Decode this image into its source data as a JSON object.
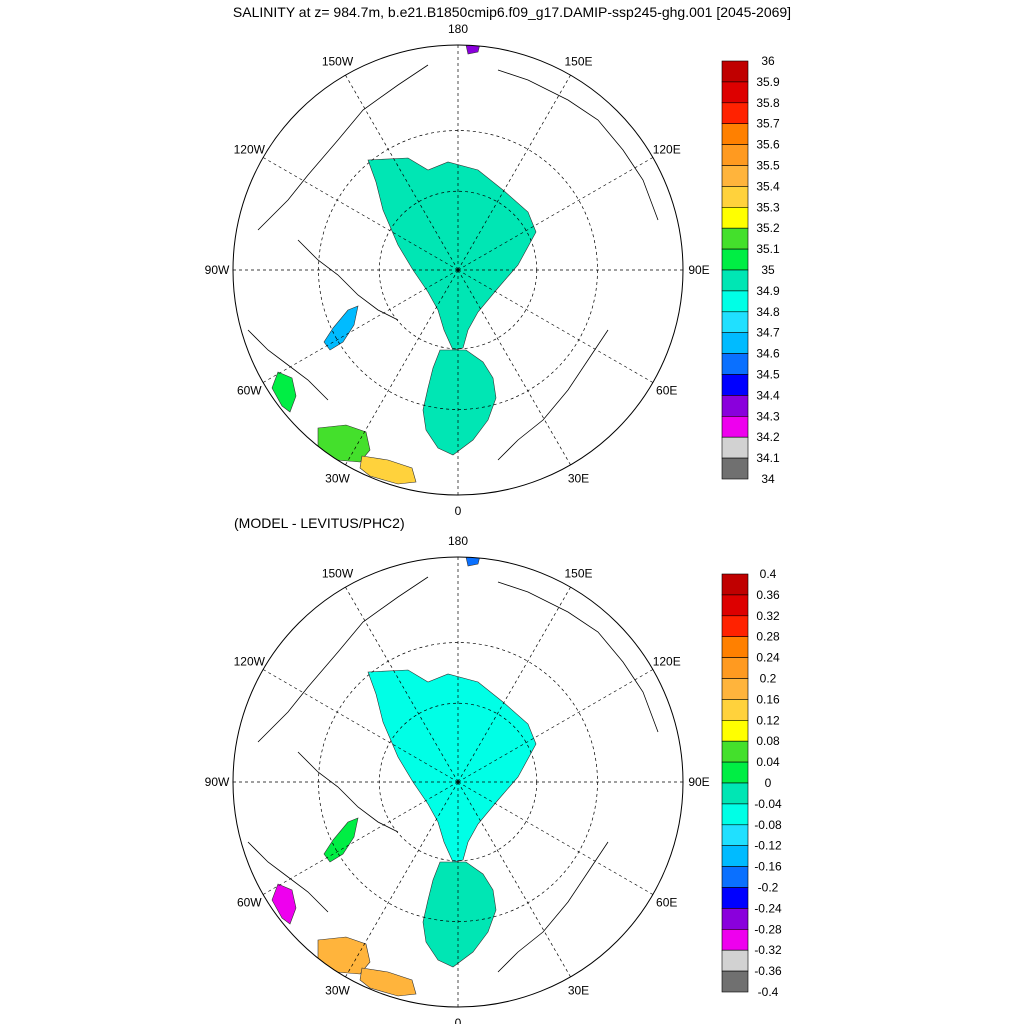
{
  "title": "SALINITY at z= 984.7m, b.e21.B1850cmip6.f09_g17.DAMIP-ssp245-ghg.001 [2045-2069]",
  "subtitle": "(MODEL - LEVITUS/PHC2)",
  "chart_data": [
    {
      "type": "heatmap",
      "projection": "north polar stereographic",
      "field": "salinity",
      "lon_labels": [
        "180",
        "150E",
        "120E",
        "90E",
        "60E",
        "30E",
        "0",
        "30W",
        "60W",
        "90W",
        "120W",
        "150W"
      ],
      "colorbar": {
        "labels": [
          "36",
          "35.9",
          "35.8",
          "35.7",
          "35.6",
          "35.5",
          "35.4",
          "35.3",
          "35.2",
          "35.1",
          "35",
          "34.9",
          "34.8",
          "34.7",
          "34.6",
          "34.5",
          "34.4",
          "34.3",
          "34.2",
          "34.1",
          "34"
        ],
        "colors": [
          "#c00000",
          "#dd0000",
          "#ff2200",
          "#ff8000",
          "#ff9a20",
          "#ffb43c",
          "#ffd23c",
          "#ffff00",
          "#44e02c",
          "#00ee44",
          "#00e6b4",
          "#00ffe6",
          "#20e0ff",
          "#00bbff",
          "#0a70ff",
          "#0000ff",
          "#8a00dc",
          "#ee00ee",
          "#d2d2d2",
          "#707070"
        ]
      },
      "regions": [
        {
          "area": "central Arctic basin",
          "value": "34.9"
        },
        {
          "area": "Nordic Seas",
          "value": "34.9"
        },
        {
          "area": "Baffin Bay",
          "value": "34.6"
        },
        {
          "area": "Labrador Sea",
          "value": "35.0"
        },
        {
          "area": "North Atlantic south of Iceland",
          "value": "35.1"
        },
        {
          "area": "North Atlantic near 20W",
          "value": "35.3"
        },
        {
          "area": "Bering Strait",
          "value": "34.3"
        }
      ]
    },
    {
      "type": "heatmap",
      "projection": "north polar stereographic",
      "field": "model minus Levitus/PHC2 salinity difference",
      "lon_labels": [
        "180",
        "150E",
        "120E",
        "90E",
        "60E",
        "30E",
        "0",
        "30W",
        "60W",
        "90W",
        "120W",
        "150W"
      ],
      "colorbar": {
        "labels": [
          "0.4",
          "0.36",
          "0.32",
          "0.28",
          "0.24",
          "0.2",
          "0.16",
          "0.12",
          "0.08",
          "0.04",
          "0",
          "-0.04",
          "-0.08",
          "-0.12",
          "-0.16",
          "-0.2",
          "-0.24",
          "-0.28",
          "-0.32",
          "-0.36",
          "-0.4"
        ],
        "colors": [
          "#c00000",
          "#dd0000",
          "#ff2200",
          "#ff8000",
          "#ff9a20",
          "#ffb43c",
          "#ffd23c",
          "#ffff00",
          "#44e02c",
          "#00ee44",
          "#00e6b4",
          "#00ffe6",
          "#20e0ff",
          "#00bbff",
          "#0a70ff",
          "#0000ff",
          "#8a00dc",
          "#ee00ee",
          "#d2d2d2",
          "#707070"
        ]
      },
      "regions": [
        {
          "area": "central Arctic basin",
          "value": "-0.08"
        },
        {
          "area": "Nordic Seas",
          "value": "-0.04"
        },
        {
          "area": "Norwegian Sea",
          "value": "0.02"
        },
        {
          "area": "Baffin Bay",
          "value": "-0.3"
        },
        {
          "area": "Labrador Sea",
          "value": "0.18"
        },
        {
          "area": "North Atlantic",
          "value": "0.18"
        },
        {
          "area": "Bering Strait",
          "value": "-0.18"
        }
      ]
    }
  ]
}
